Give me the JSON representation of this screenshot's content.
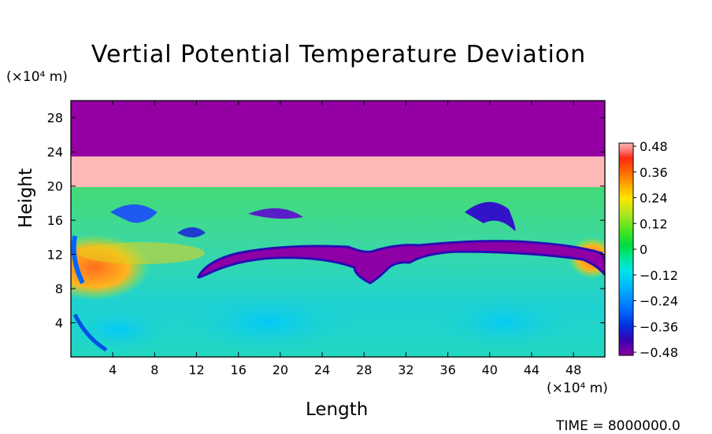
{
  "chart_data": {
    "type": "heatmap",
    "title": "Vertial Potential Temperature Deviation",
    "xlabel": "Length",
    "ylabel": "Height",
    "x_unit": "(×10⁴ m)",
    "y_unit": "(×10⁴ m)",
    "xlim": [
      0,
      51
    ],
    "ylim": [
      0,
      30
    ],
    "x_ticks": [
      4,
      8,
      12,
      16,
      20,
      24,
      28,
      32,
      36,
      40,
      44,
      48
    ],
    "y_ticks": [
      4,
      8,
      12,
      16,
      20,
      24,
      28
    ],
    "colorbar": {
      "min": -0.48,
      "max": 0.48,
      "tick_labels": [
        "0.48",
        "0.36",
        "0.24",
        "0.12",
        "0",
        "−0.12",
        "−0.24",
        "−0.36",
        "−0.48"
      ],
      "tick_values": [
        0.48,
        0.36,
        0.24,
        0.12,
        0,
        -0.12,
        -0.24,
        -0.36,
        -0.48
      ],
      "colors": [
        "#8b00a0",
        "#3a00b4",
        "#0030e0",
        "#0070ff",
        "#00b4ff",
        "#00e6e6",
        "#00e696",
        "#00dc3c",
        "#5ae61e",
        "#b4e61e",
        "#ffe600",
        "#ffaa00",
        "#ff6e00",
        "#ff2814",
        "#ffb4b4"
      ]
    },
    "bands": [
      {
        "name": "top layer",
        "y_range": [
          23.5,
          30
        ],
        "value": -0.48,
        "color": "#9400a4"
      },
      {
        "name": "pink layer",
        "y_range": [
          20,
          23.5
        ],
        "value": 0.48,
        "color": "#ffb8b8"
      }
    ],
    "features": [
      {
        "kind": "cold front sheet",
        "y_approx": 12,
        "x_range": [
          12.5,
          50.5
        ],
        "value": -0.48
      },
      {
        "kind": "warm region",
        "x_range": [
          0,
          5
        ],
        "y_range": [
          8,
          13
        ],
        "value": 0.3
      }
    ]
  },
  "footer": {
    "time_label": "TIME = 8000000.0"
  }
}
